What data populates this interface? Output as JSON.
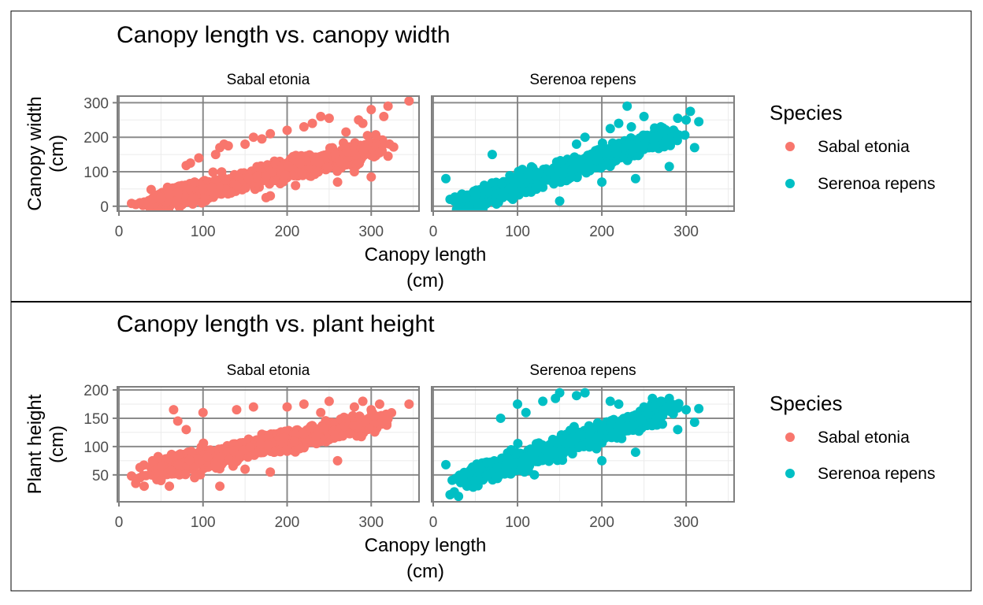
{
  "colors": {
    "sabal": "#F8766D",
    "serenoa": "#00BFC4",
    "panel_border": "#7F7F7F",
    "grid_major": "#CCCCCC",
    "grid_minor": "#EBEBEB",
    "outer_border": "#000000",
    "text": "#000000",
    "tick_text": "#4D4D4D"
  },
  "chart_data": [
    {
      "type": "scatter",
      "title": "Canopy length vs. canopy width",
      "xlabel": "Canopy length\n(cm)",
      "ylabel": "Canopy width\n(cm)",
      "xlim": [
        0,
        355
      ],
      "ylim": [
        -5,
        310
      ],
      "x_ticks": [
        0,
        100,
        200,
        300
      ],
      "y_ticks": [
        0,
        100,
        200,
        300
      ],
      "grid": true,
      "legend": {
        "title": "Species",
        "placement": "right",
        "entries": [
          "Sabal etonia",
          "Serenoa repens"
        ]
      },
      "facets": [
        {
          "label": "Sabal etonia",
          "series": "Sabal etonia",
          "trend": {
            "slope": 0.58,
            "intercept": -10
          },
          "x_range": [
            15,
            345
          ],
          "points": [
            [
              15,
              8
            ],
            [
              20,
              5
            ],
            [
              25,
              10
            ],
            [
              30,
              12
            ],
            [
              40,
              20
            ],
            [
              50,
              25
            ],
            [
              60,
              35
            ],
            [
              70,
              40
            ],
            [
              75,
              60
            ],
            [
              80,
              118
            ],
            [
              85,
              125
            ],
            [
              90,
              70
            ],
            [
              95,
              140
            ],
            [
              100,
              50
            ],
            [
              110,
              55
            ],
            [
              115,
              150
            ],
            [
              120,
              170
            ],
            [
              125,
              180
            ],
            [
              130,
              175
            ],
            [
              140,
              60
            ],
            [
              150,
              180
            ],
            [
              160,
              200
            ],
            [
              170,
              195
            ],
            [
              175,
              25
            ],
            [
              180,
              30
            ],
            [
              180,
              210
            ],
            [
              200,
              220
            ],
            [
              210,
              60
            ],
            [
              220,
              230
            ],
            [
              230,
              240
            ],
            [
              240,
              260
            ],
            [
              250,
              255
            ],
            [
              260,
              70
            ],
            [
              270,
              215
            ],
            [
              280,
              100
            ],
            [
              285,
              250
            ],
            [
              290,
              240
            ],
            [
              300,
              85
            ],
            [
              300,
              280
            ],
            [
              310,
              155
            ],
            [
              315,
              260
            ],
            [
              320,
              290
            ],
            [
              320,
              145
            ],
            [
              345,
              305
            ]
          ]
        },
        {
          "label": "Serenoa repens",
          "series": "Serenoa repens",
          "trend": {
            "slope": 0.78,
            "intercept": -15
          },
          "x_range": [
            15,
            315
          ],
          "points": [
            [
              15,
              80
            ],
            [
              20,
              20
            ],
            [
              25,
              15
            ],
            [
              30,
              10
            ],
            [
              40,
              25
            ],
            [
              50,
              30
            ],
            [
              70,
              150
            ],
            [
              90,
              50
            ],
            [
              110,
              40
            ],
            [
              130,
              55
            ],
            [
              150,
              15
            ],
            [
              170,
              180
            ],
            [
              180,
              200
            ],
            [
              200,
              70
            ],
            [
              210,
              225
            ],
            [
              220,
              240
            ],
            [
              230,
              290
            ],
            [
              235,
              230
            ],
            [
              240,
              80
            ],
            [
              250,
              260
            ],
            [
              260,
              170
            ],
            [
              270,
              230
            ],
            [
              280,
              115
            ],
            [
              290,
              255
            ],
            [
              300,
              250
            ],
            [
              305,
              275
            ],
            [
              310,
              170
            ],
            [
              315,
              245
            ]
          ]
        }
      ]
    },
    {
      "type": "scatter",
      "title": "Canopy length vs. plant height",
      "xlabel": "Canopy length\n(cm)",
      "ylabel": "Plant height\n(cm)",
      "xlim": [
        0,
        355
      ],
      "ylim": [
        8,
        200
      ],
      "x_ticks": [
        0,
        100,
        200,
        300
      ],
      "y_ticks": [
        50,
        100,
        150,
        200
      ],
      "grid": true,
      "legend": {
        "title": "Species",
        "placement": "right",
        "entries": [
          "Sabal etonia",
          "Serenoa repens"
        ]
      },
      "facets": [
        {
          "label": "Sabal etonia",
          "series": "Sabal etonia",
          "trend": {
            "slope": 0.33,
            "intercept": 45
          },
          "x_range": [
            15,
            345
          ],
          "points": [
            [
              15,
              48
            ],
            [
              20,
              35
            ],
            [
              25,
              45
            ],
            [
              30,
              30
            ],
            [
              40,
              75
            ],
            [
              50,
              40
            ],
            [
              60,
              30
            ],
            [
              65,
              165
            ],
            [
              70,
              145
            ],
            [
              80,
              130
            ],
            [
              90,
              45
            ],
            [
              100,
              160
            ],
            [
              120,
              30
            ],
            [
              140,
              165
            ],
            [
              150,
              60
            ],
            [
              160,
              170
            ],
            [
              180,
              55
            ],
            [
              200,
              170
            ],
            [
              220,
              175
            ],
            [
              240,
              160
            ],
            [
              250,
              180
            ],
            [
              260,
              75
            ],
            [
              270,
              150
            ],
            [
              280,
              170
            ],
            [
              290,
              180
            ],
            [
              300,
              165
            ],
            [
              310,
              175
            ],
            [
              320,
              155
            ],
            [
              345,
              175
            ]
          ]
        },
        {
          "label": "Serenoa repens",
          "series": "Serenoa repens",
          "trend": {
            "slope": 0.5,
            "intercept": 25
          },
          "x_range": [
            15,
            315
          ],
          "points": [
            [
              15,
              68
            ],
            [
              20,
              15
            ],
            [
              25,
              20
            ],
            [
              30,
              12
            ],
            [
              40,
              30
            ],
            [
              50,
              40
            ],
            [
              80,
              150
            ],
            [
              100,
              175
            ],
            [
              110,
              160
            ],
            [
              120,
              50
            ],
            [
              130,
              180
            ],
            [
              145,
              185
            ],
            [
              150,
              195
            ],
            [
              170,
              190
            ],
            [
              180,
              195
            ],
            [
              200,
              75
            ],
            [
              210,
              180
            ],
            [
              220,
              175
            ],
            [
              240,
              90
            ],
            [
              250,
              170
            ],
            [
              260,
              185
            ],
            [
              270,
              180
            ],
            [
              280,
              185
            ],
            [
              290,
              130
            ],
            [
              300,
              165
            ],
            [
              310,
              143
            ],
            [
              315,
              167
            ]
          ]
        }
      ]
    }
  ]
}
